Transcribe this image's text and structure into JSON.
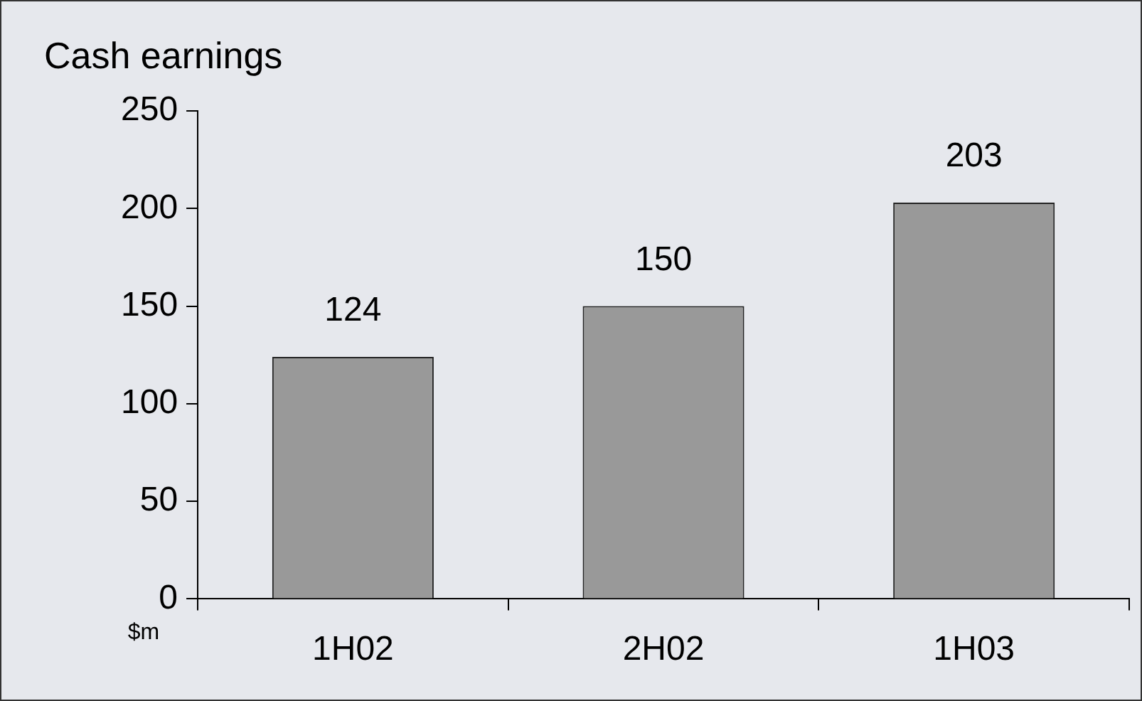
{
  "chart_data": {
    "type": "bar",
    "title": "Cash earnings",
    "categories": [
      "1H02",
      "2H02",
      "1H03"
    ],
    "values": [
      124,
      150,
      203
    ],
    "color": "#999999",
    "ylim": [
      0,
      250
    ],
    "yticks": [
      0,
      50,
      100,
      150,
      200,
      250
    ],
    "data_labels": true,
    "grid": false,
    "legend": false,
    "annotations": [
      "$m"
    ]
  }
}
